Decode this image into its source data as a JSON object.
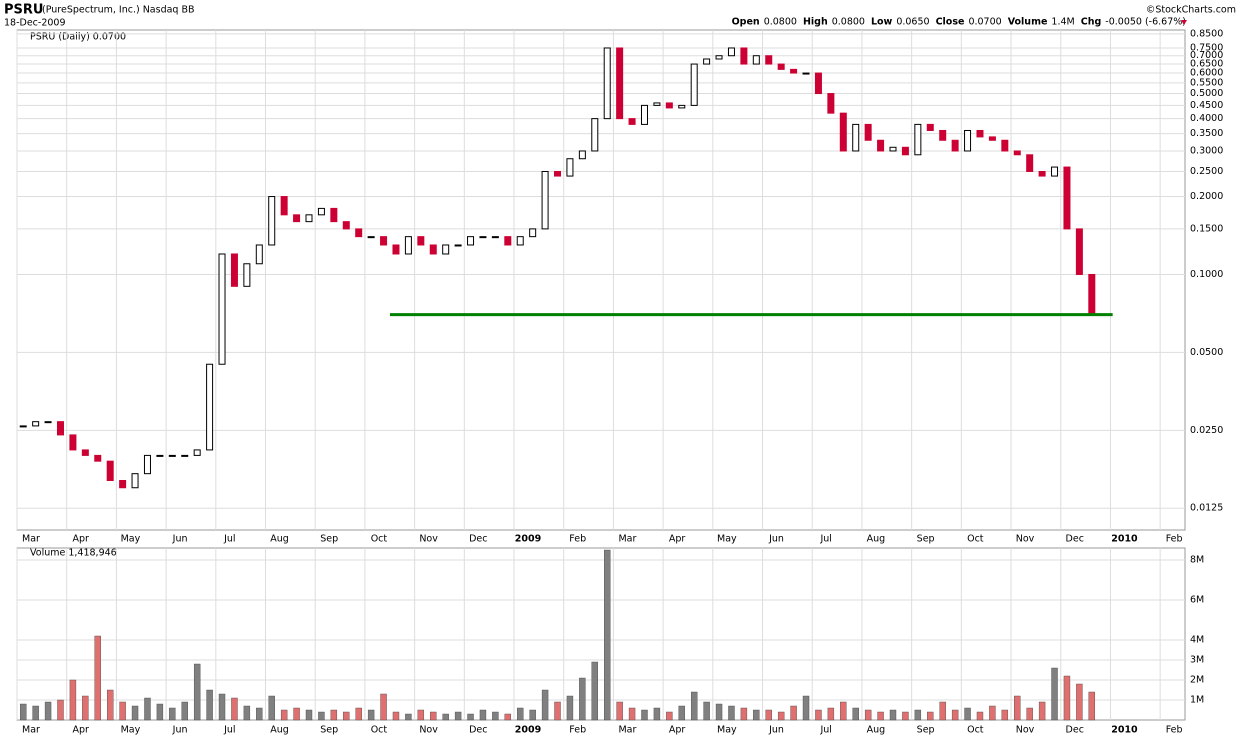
{
  "header": {
    "symbol": "PSRU",
    "name": "(PureSpectrum, Inc.) Nasdaq BB",
    "date": "18-Dec-2009",
    "credit": "©StockCharts.com",
    "quote": [
      {
        "label": "Open",
        "value": "0.0800"
      },
      {
        "label": "High",
        "value": "0.0800"
      },
      {
        "label": "Low",
        "value": "0.0650"
      },
      {
        "label": "Close",
        "value": "0.0700"
      },
      {
        "label": "Volume",
        "value": "1.4M"
      },
      {
        "label": "Chg",
        "value": "-0.0050 (-6.67%)"
      }
    ]
  },
  "chart_data": [
    {
      "type": "candlestick",
      "legend": "PSRU (Daily) 0.0700",
      "log_scale": true,
      "grid": true,
      "up_color": "#000000",
      "down_color": "#cc0033",
      "categories": [
        "Mar",
        null,
        null,
        null,
        "Apr",
        null,
        null,
        null,
        "May",
        null,
        null,
        null,
        "Jun",
        null,
        null,
        null,
        "Jul",
        null,
        null,
        null,
        "Aug",
        null,
        null,
        null,
        "Sep",
        null,
        null,
        null,
        "Oct",
        null,
        null,
        null,
        "Nov",
        null,
        null,
        null,
        "Dec",
        null,
        null,
        null,
        "2009",
        null,
        null,
        null,
        "Feb",
        null,
        null,
        null,
        "Mar",
        null,
        null,
        null,
        "Apr",
        null,
        null,
        null,
        "May",
        null,
        null,
        null,
        "Jun",
        null,
        null,
        null,
        "Jul",
        null,
        null,
        null,
        "Aug",
        null,
        null,
        null,
        "Sep",
        null,
        null,
        null,
        "Oct",
        null,
        null,
        null,
        "Nov",
        null,
        null,
        null,
        "Dec",
        null,
        null,
        null,
        "2010",
        null,
        null,
        null,
        "Feb",
        null
      ],
      "values": [
        0.026,
        0.027,
        0.027,
        0.024,
        0.021,
        0.02,
        0.019,
        0.016,
        0.015,
        0.017,
        0.02,
        0.02,
        0.02,
        0.02,
        0.021,
        0.045,
        0.12,
        0.09,
        0.11,
        0.13,
        0.2,
        0.17,
        0.16,
        0.17,
        0.18,
        0.16,
        0.15,
        0.14,
        0.14,
        0.13,
        0.12,
        0.14,
        0.13,
        0.12,
        0.13,
        0.13,
        0.14,
        0.14,
        0.14,
        0.13,
        0.14,
        0.15,
        0.25,
        0.24,
        0.28,
        0.3,
        0.4,
        0.75,
        0.4,
        0.38,
        0.45,
        0.46,
        0.44,
        0.45,
        0.65,
        0.68,
        0.7,
        0.75,
        0.65,
        0.7,
        0.65,
        0.62,
        0.6,
        0.6,
        0.5,
        0.42,
        0.3,
        0.38,
        0.33,
        0.3,
        0.31,
        0.29,
        0.38,
        0.36,
        0.33,
        0.3,
        0.36,
        0.34,
        0.33,
        0.3,
        0.29,
        0.25,
        0.24,
        0.26,
        0.15,
        0.1,
        0.07,
        null,
        null,
        null,
        null,
        null,
        null,
        null
      ],
      "ylim": [
        0.0103,
        0.88
      ],
      "yticks": [
        {
          "value": 0.0125,
          "label": "0.0125"
        },
        {
          "value": 0.025,
          "label": "0.0250"
        },
        {
          "value": 0.05,
          "label": "0.0500"
        },
        {
          "value": 0.1,
          "label": "0.1000"
        },
        {
          "value": 0.15,
          "label": "0.1500"
        },
        {
          "value": 0.2,
          "label": "0.2000"
        },
        {
          "value": 0.25,
          "label": "0.2500"
        },
        {
          "value": 0.3,
          "label": "0.3000"
        },
        {
          "value": 0.35,
          "label": "0.3500"
        },
        {
          "value": 0.4,
          "label": "0.4000"
        },
        {
          "value": 0.45,
          "label": "0.4500"
        },
        {
          "value": 0.5,
          "label": "0.5000"
        },
        {
          "value": 0.55,
          "label": "0.5500"
        },
        {
          "value": 0.6,
          "label": "0.6000"
        },
        {
          "value": 0.65,
          "label": "0.6500"
        },
        {
          "value": 0.7,
          "label": "0.7000"
        },
        {
          "value": 0.75,
          "label": "0.7500"
        },
        {
          "value": 0.85,
          "label": "0.8500"
        }
      ],
      "support": {
        "value": 0.07,
        "color": "#008000"
      }
    },
    {
      "type": "bar",
      "legend": "Volume 1,418,946",
      "grid": true,
      "color": "#e07070",
      "alt_color": "#808080",
      "values": [
        800000,
        700000,
        900000,
        1000000,
        2000000,
        1200000,
        4200000,
        1500000,
        900000,
        700000,
        1100000,
        800000,
        600000,
        900000,
        2800000,
        1500000,
        1300000,
        1100000,
        700000,
        600000,
        1200000,
        500000,
        600000,
        500000,
        400000,
        500000,
        400000,
        600000,
        500000,
        1300000,
        400000,
        300000,
        500000,
        400000,
        300000,
        400000,
        300000,
        500000,
        400000,
        300000,
        600000,
        500000,
        1500000,
        900000,
        1200000,
        2100000,
        2900000,
        8500000,
        900000,
        600000,
        500000,
        600000,
        400000,
        700000,
        1400000,
        900000,
        800000,
        700000,
        600000,
        500000,
        500000,
        400000,
        700000,
        1200000,
        500000,
        600000,
        900000,
        600000,
        500000,
        400000,
        500000,
        400000,
        500000,
        400000,
        900000,
        500000,
        600000,
        400000,
        700000,
        500000,
        1200000,
        600000,
        900000,
        2600000,
        2200000,
        1800000,
        1400000,
        null,
        null,
        null,
        null,
        null,
        null,
        null
      ],
      "ylim": [
        0,
        8600000
      ],
      "yticks": [
        {
          "value": 1000000,
          "label": "1M"
        },
        {
          "value": 2000000,
          "label": "2M"
        },
        {
          "value": 3000000,
          "label": "3M"
        },
        {
          "value": 4000000,
          "label": "4M"
        },
        {
          "value": 6000000,
          "label": "6M"
        },
        {
          "value": 8000000,
          "label": "8M"
        }
      ]
    }
  ]
}
